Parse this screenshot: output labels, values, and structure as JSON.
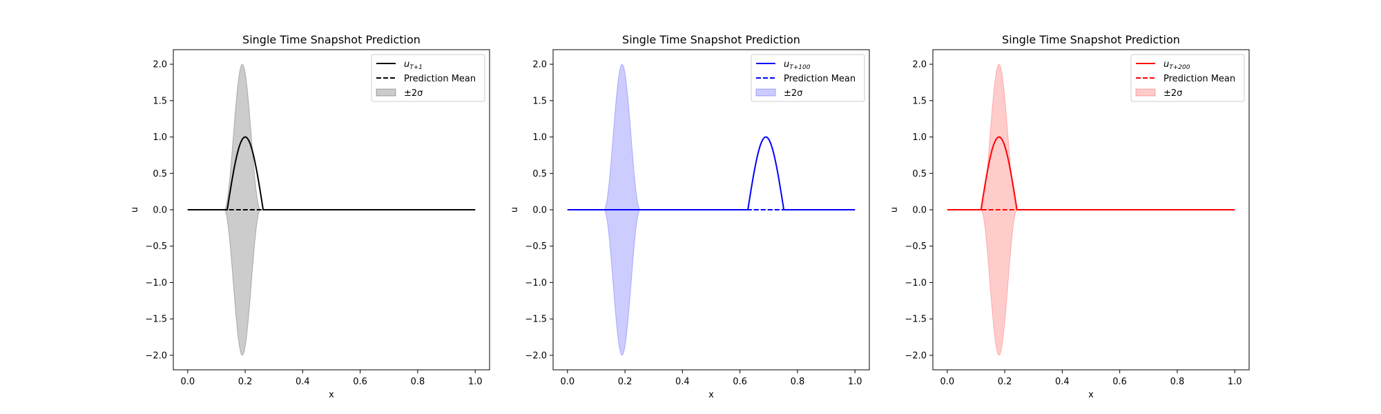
{
  "chart_data": [
    {
      "type": "line",
      "title": "Single Time Snapshot Prediction",
      "xlabel": "x",
      "ylabel": "u",
      "xlim": [
        -0.05,
        1.05
      ],
      "ylim": [
        -2.2,
        2.2
      ],
      "xticks": [
        0.0,
        0.2,
        0.4,
        0.6,
        0.8,
        1.0
      ],
      "xtick_labels": [
        "0.0",
        "0.2",
        "0.4",
        "0.6",
        "0.8",
        "1.0"
      ],
      "yticks": [
        2.0,
        1.5,
        1.0,
        0.5,
        0.0,
        -0.5,
        -1.0,
        -1.5,
        -2.0
      ],
      "ytick_labels": [
        "2.0",
        "1.5",
        "1.0",
        "0.5",
        "0.0",
        "−0.5",
        "−1.0",
        "−1.5",
        "−2.0"
      ],
      "color": "#000000",
      "band_color": "#000000",
      "band_opacity": 0.2,
      "legend_position": "upper right",
      "legend": [
        {
          "label": "u",
          "subscript": "T+1",
          "style": "solid"
        },
        {
          "label": "Prediction Mean",
          "style": "dashed"
        },
        {
          "label": "±2σ",
          "style": "band"
        }
      ],
      "truth_pulse": {
        "center": 0.2,
        "half_width": 0.0625,
        "amplitude": 1.0
      },
      "mean": 0.0,
      "band": {
        "center": 0.19,
        "half_width": 0.063,
        "amplitude": 2.0
      }
    },
    {
      "type": "line",
      "title": "Single Time Snapshot Prediction",
      "xlabel": "x",
      "ylabel": "u",
      "xlim": [
        -0.05,
        1.05
      ],
      "ylim": [
        -2.2,
        2.2
      ],
      "xticks": [
        0.0,
        0.2,
        0.4,
        0.6,
        0.8,
        1.0
      ],
      "xtick_labels": [
        "0.0",
        "0.2",
        "0.4",
        "0.6",
        "0.8",
        "1.0"
      ],
      "yticks": [
        2.0,
        1.5,
        1.0,
        0.5,
        0.0,
        -0.5,
        -1.0,
        -1.5,
        -2.0
      ],
      "ytick_labels": [
        "2.0",
        "1.5",
        "1.0",
        "0.5",
        "0.0",
        "−0.5",
        "−1.0",
        "−1.5",
        "−2.0"
      ],
      "color": "#0000ff",
      "band_color": "#0000ff",
      "band_opacity": 0.2,
      "legend_position": "upper right",
      "legend": [
        {
          "label": "u",
          "subscript": "T+100",
          "style": "solid"
        },
        {
          "label": "Prediction Mean",
          "style": "dashed"
        },
        {
          "label": "±2σ",
          "style": "band"
        }
      ],
      "truth_pulse": {
        "center": 0.69,
        "half_width": 0.0625,
        "amplitude": 1.0
      },
      "mean": 0.0,
      "band": {
        "center": 0.19,
        "half_width": 0.063,
        "amplitude": 2.0
      }
    },
    {
      "type": "line",
      "title": "Single Time Snapshot Prediction",
      "xlabel": "x",
      "ylabel": "u",
      "xlim": [
        -0.05,
        1.05
      ],
      "ylim": [
        -2.2,
        2.2
      ],
      "xticks": [
        0.0,
        0.2,
        0.4,
        0.6,
        0.8,
        1.0
      ],
      "xtick_labels": [
        "0.0",
        "0.2",
        "0.4",
        "0.6",
        "0.8",
        "1.0"
      ],
      "yticks": [
        2.0,
        1.5,
        1.0,
        0.5,
        0.0,
        -0.5,
        -1.0,
        -1.5,
        -2.0
      ],
      "ytick_labels": [
        "2.0",
        "1.5",
        "1.0",
        "0.5",
        "0.0",
        "−0.5",
        "−1.0",
        "−1.5",
        "−2.0"
      ],
      "color": "#ff0000",
      "band_color": "#ff0000",
      "band_opacity": 0.2,
      "legend_position": "upper right",
      "legend": [
        {
          "label": "u",
          "subscript": "T+200",
          "style": "solid"
        },
        {
          "label": "Prediction Mean",
          "style": "dashed"
        },
        {
          "label": "±2σ",
          "style": "band"
        }
      ],
      "truth_pulse": {
        "center": 0.18,
        "half_width": 0.0625,
        "amplitude": 1.0
      },
      "mean": 0.0,
      "band": {
        "center": 0.18,
        "half_width": 0.063,
        "amplitude": 2.0
      }
    }
  ]
}
